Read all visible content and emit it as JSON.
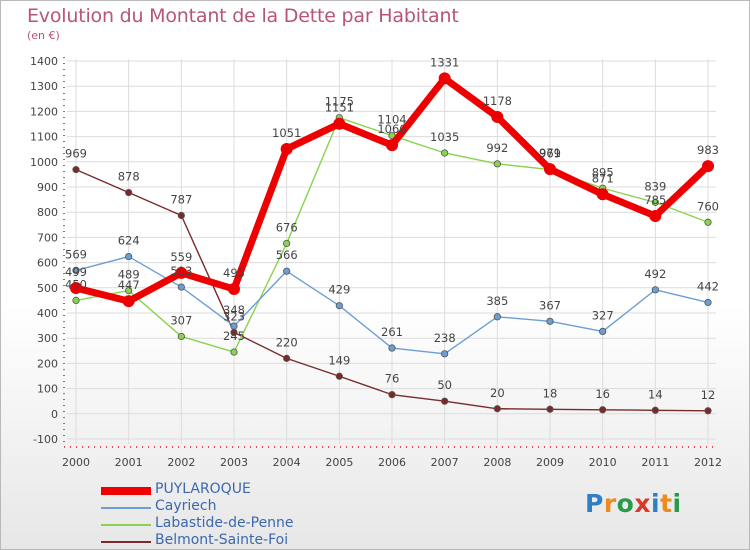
{
  "header": {
    "title": "Evolution du Montant de la Dette par Habitant",
    "subtitle": "(en €)"
  },
  "brand": {
    "letters": [
      "P",
      "r",
      "o",
      "x",
      "i",
      "t",
      "i"
    ],
    "colors": [
      "#2f7fc4",
      "#ef8b1e",
      "#2a9a4a",
      "#d63a2c",
      "#2f7fc4",
      "#ef8b1e",
      "#2a9a4a"
    ]
  },
  "chart_data": {
    "type": "line",
    "title": "Evolution du Montant de la Dette par Habitant",
    "subtitle": "(en €)",
    "xlabel": "",
    "ylabel": "",
    "x": [
      "2000",
      "2001",
      "2002",
      "2003",
      "2004",
      "2005",
      "2006",
      "2007",
      "2008",
      "2009",
      "2010",
      "2011",
      "2012"
    ],
    "ylim": [
      -100,
      1400
    ],
    "yticks": [
      -100,
      0,
      100,
      200,
      300,
      400,
      500,
      600,
      700,
      800,
      900,
      1000,
      1100,
      1200,
      1300,
      1400
    ],
    "grid": true,
    "legend_position": "bottom-left",
    "series": [
      {
        "name": "PUYLAROQUE",
        "color": "#ee0000",
        "values": [
          499,
          447,
          559,
          495,
          1051,
          1151,
          1066,
          1331,
          1178,
          971,
          871,
          785,
          983
        ]
      },
      {
        "name": "Cayriech",
        "color": "#6b9fd3",
        "values": [
          569,
          624,
          503,
          348,
          566,
          429,
          261,
          238,
          385,
          367,
          327,
          492,
          442
        ]
      },
      {
        "name": "Labastide-de-Penne",
        "color": "#89d34e",
        "values": [
          450,
          489,
          307,
          245,
          676,
          1175,
          1104,
          1035,
          992,
          969,
          895,
          839,
          760
        ]
      },
      {
        "name": "Belmont-Sainte-Foi",
        "color": "#7a2a2a",
        "values": [
          969,
          878,
          787,
          323,
          220,
          149,
          76,
          50,
          20,
          18,
          16,
          14,
          12
        ]
      }
    ]
  }
}
